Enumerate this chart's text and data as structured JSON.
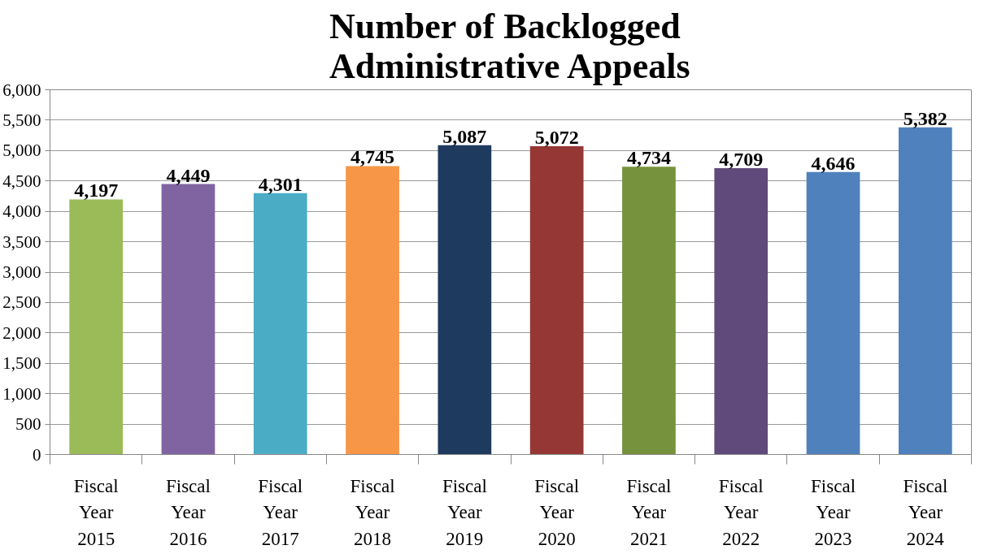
{
  "chart_data": {
    "type": "bar",
    "title": "Number of Backlogged\nAdministrative Appeals",
    "categories": [
      "Fiscal Year 2015",
      "Fiscal Year 2016",
      "Fiscal Year 2017",
      "Fiscal Year 2018",
      "Fiscal Year 2019",
      "Fiscal Year 2020",
      "Fiscal Year 2021",
      "Fiscal Year 2022",
      "Fiscal Year 2023",
      "Fiscal Year 2024"
    ],
    "values": [
      4197,
      4449,
      4301,
      4745,
      5087,
      5072,
      4734,
      4709,
      4646,
      5382
    ],
    "colors": [
      "#9bbb59",
      "#8064a2",
      "#4bacc6",
      "#f79646",
      "#1f3a5f",
      "#953735",
      "#76923c",
      "#604a7b",
      "#4f81bd",
      "#4f81bd"
    ],
    "ylim": [
      0,
      6000
    ],
    "yticks": [
      {
        "value": 0,
        "label": "0"
      },
      {
        "value": 500,
        "label": "500"
      },
      {
        "value": 1000,
        "label": "1,000"
      },
      {
        "value": 1500,
        "label": "1,500"
      },
      {
        "value": 2000,
        "label": "2,000"
      },
      {
        "value": 2500,
        "label": "2,500"
      },
      {
        "value": 3000,
        "label": "3,000"
      },
      {
        "value": 3500,
        "label": "3,500"
      },
      {
        "value": 4000,
        "label": "4,000"
      },
      {
        "value": 4500,
        "label": "4,500"
      },
      {
        "value": 5000,
        "label": "5,000"
      },
      {
        "value": 5500,
        "label": "5,500"
      },
      {
        "value": 6000,
        "label": "6,000"
      }
    ],
    "value_labels": [
      "4,197",
      "4,449",
      "4,301",
      "4,745",
      "5,087",
      "5,072",
      "4,734",
      "4,709",
      "4,646",
      "5,382"
    ],
    "grid": "y"
  }
}
